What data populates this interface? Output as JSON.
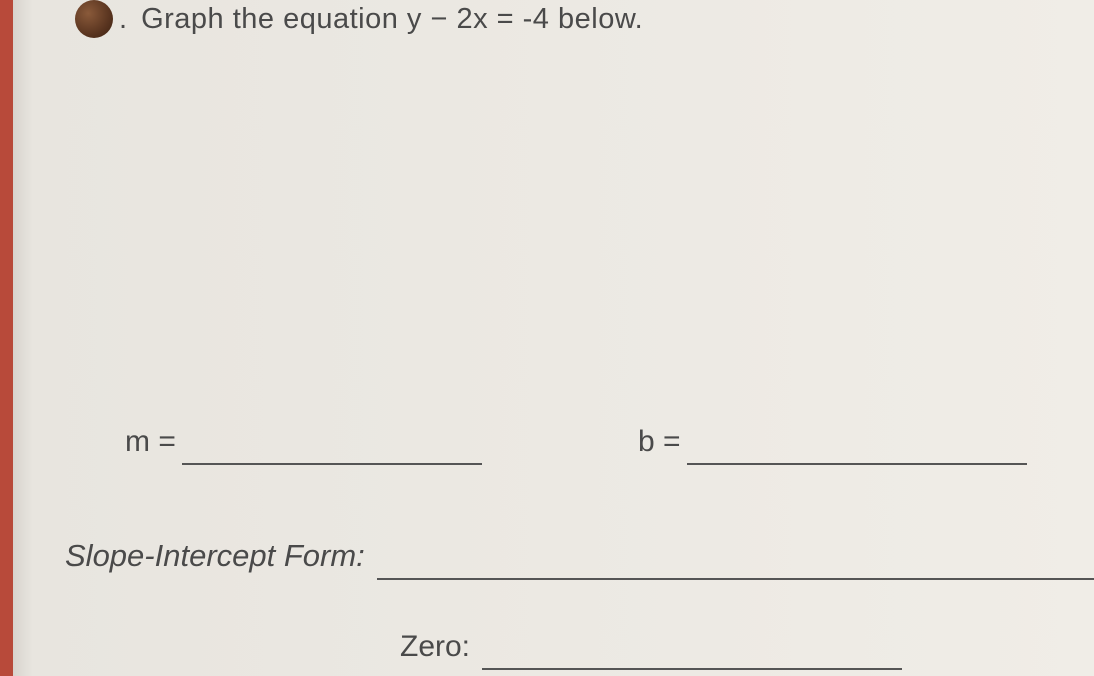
{
  "question": {
    "period": ".",
    "text": "Graph the equation y − 2x = -4 below."
  },
  "fields": {
    "m_label": "m =",
    "b_label": "b =",
    "slope_intercept_label": "Slope-Intercept Form:",
    "zero_label": "Zero:"
  },
  "styling": {
    "page_bg": "#f0ede7",
    "spine_color": "#b84a3a",
    "text_color": "#4a4a4a",
    "line_color": "#555555",
    "bullet_gradient": [
      "#8a5a3a",
      "#5a3520",
      "#3a2010"
    ],
    "font_family": "Verdana",
    "question_fontsize": 29,
    "label_fontsize": 30,
    "italic_label_fontsize": 31,
    "blank_widths": {
      "m": 300,
      "b": 340,
      "zero": 420
    }
  }
}
